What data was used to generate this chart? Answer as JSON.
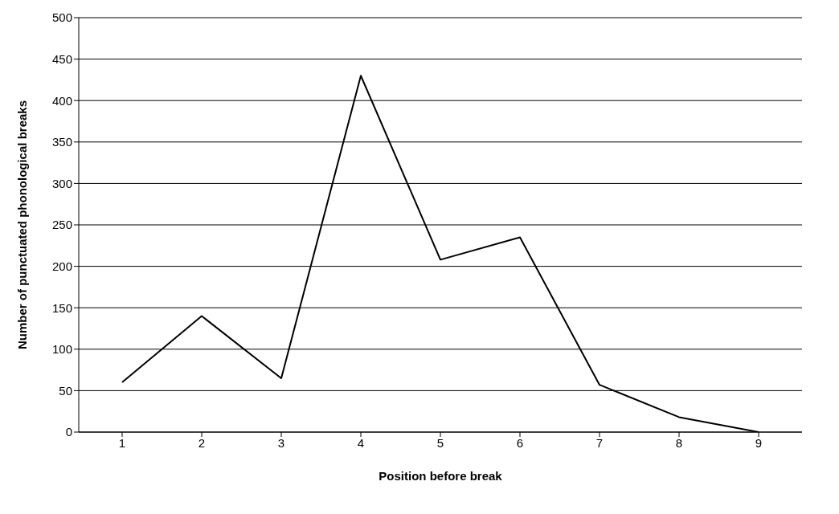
{
  "chart_data": {
    "type": "line",
    "xlabel": "Position before break",
    "ylabel": "Number of punctuated phonological breaks",
    "categories": [
      "1",
      "2",
      "3",
      "4",
      "5",
      "6",
      "7",
      "8",
      "9"
    ],
    "series": [
      {
        "color": "#000000",
        "values": [
          60,
          140,
          65,
          430,
          208,
          235,
          57,
          18,
          0
        ]
      }
    ],
    "ylim": [
      0,
      500
    ],
    "yticks": [
      0,
      50,
      100,
      150,
      200,
      250,
      300,
      350,
      400,
      450,
      500
    ],
    "grid": "y",
    "marker": "none",
    "line_style": "solid"
  }
}
